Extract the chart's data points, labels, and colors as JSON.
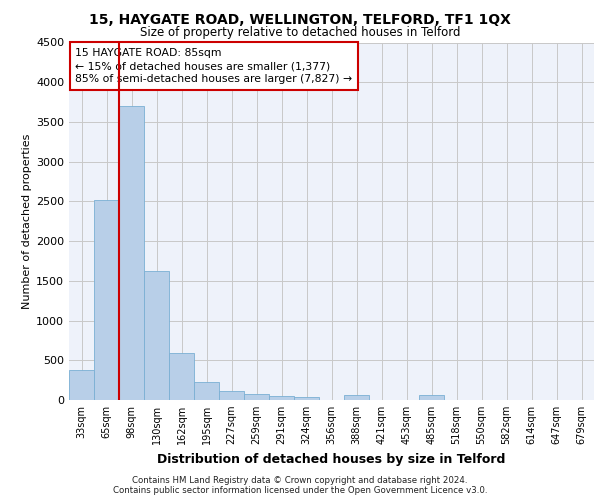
{
  "title1": "15, HAYGATE ROAD, WELLINGTON, TELFORD, TF1 1QX",
  "title2": "Size of property relative to detached houses in Telford",
  "xlabel": "Distribution of detached houses by size in Telford",
  "ylabel": "Number of detached properties",
  "bar_labels": [
    "33sqm",
    "65sqm",
    "98sqm",
    "130sqm",
    "162sqm",
    "195sqm",
    "227sqm",
    "259sqm",
    "291sqm",
    "324sqm",
    "356sqm",
    "388sqm",
    "421sqm",
    "453sqm",
    "485sqm",
    "518sqm",
    "550sqm",
    "582sqm",
    "614sqm",
    "647sqm",
    "679sqm"
  ],
  "bar_values": [
    380,
    2520,
    3700,
    1620,
    590,
    230,
    110,
    70,
    50,
    40,
    0,
    60,
    0,
    0,
    60,
    0,
    0,
    0,
    0,
    0,
    0
  ],
  "bar_color": "#b8cfe8",
  "bar_edge_color": "#7aafd4",
  "vline_color": "#cc0000",
  "annotation_text": "15 HAYGATE ROAD: 85sqm\n← 15% of detached houses are smaller (1,377)\n85% of semi-detached houses are larger (7,827) →",
  "annotation_box_color": "#ffffff",
  "annotation_box_edge": "#cc0000",
  "ylim": [
    0,
    4500
  ],
  "yticks": [
    0,
    500,
    1000,
    1500,
    2000,
    2500,
    3000,
    3500,
    4000,
    4500
  ],
  "footer1": "Contains HM Land Registry data © Crown copyright and database right 2024.",
  "footer2": "Contains public sector information licensed under the Open Government Licence v3.0.",
  "background_color": "#eef2fa",
  "grid_color": "#c8c8c8",
  "fig_bg": "#ffffff"
}
